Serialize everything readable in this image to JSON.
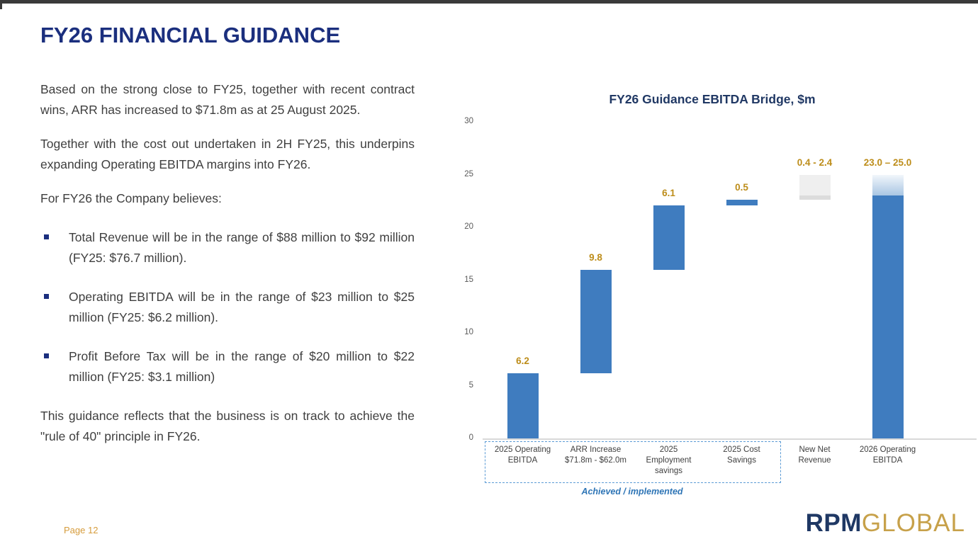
{
  "slide": {
    "title": "FY26 FINANCIAL GUIDANCE",
    "page_label": "Page 12",
    "logo": {
      "part1": "RPM",
      "part2": "GLOBAL"
    }
  },
  "body": {
    "paragraph_1": "Based on the strong close to FY25, together with recent contract wins, ARR has increased to $71.8m as at 25 August 2025.",
    "paragraph_2": "Together with the cost out undertaken in 2H FY25, this underpins expanding Operating EBITDA margins into FY26.",
    "paragraph_3": "For FY26 the Company believes:",
    "bullets": [
      "Total Revenue will be in the range of $88 million to $92 million (FY25: $76.7 million).",
      "Operating EBITDA will be in the range of $23 million to $25 million (FY25: $6.2 million).",
      "Profit Before Tax will be in the range of $20 million to $22 million (FY25: $3.1 million)"
    ],
    "closing": "This guidance reflects that the business is on track to achieve the \"rule of 40\" principle in FY26."
  },
  "chart_data": {
    "type": "bar",
    "subtype": "waterfall",
    "title": "FY26 Guidance EBITDA Bridge, $m",
    "ylabel": "",
    "xlabel": "",
    "ylim": [
      0,
      30
    ],
    "yticks": [
      0,
      5,
      10,
      15,
      20,
      25,
      30
    ],
    "grid": false,
    "legend": "none",
    "categories": [
      "2025 Operating\nEBITDA",
      "ARR Increase\n$71.8m - $62.0m",
      "2025\nEmployment\nsavings",
      "2025 Cost\nSavings",
      "New Net\nRevenue",
      "2026 Operating\nEBITDA"
    ],
    "bars": [
      {
        "start": 0,
        "end": 6.2,
        "value_label": "6.2",
        "kind": "actual"
      },
      {
        "start": 6.2,
        "end": 16.0,
        "value_label": "9.8",
        "kind": "actual"
      },
      {
        "start": 16.0,
        "end": 22.1,
        "value_label": "6.1",
        "kind": "actual"
      },
      {
        "start": 22.1,
        "end": 22.6,
        "value_label": "0.5",
        "kind": "actual"
      },
      {
        "start": 22.6,
        "end": 25.0,
        "value_label": "0.4 - 2.4",
        "kind": "estimate_range",
        "solid_to": 23.0
      },
      {
        "start": 0,
        "end": 25.0,
        "value_label": "23.0 – 25.0",
        "kind": "total_range",
        "solid_to": 23.0
      }
    ],
    "bracket": {
      "label": "Achieved / implemented",
      "covers_categories_from": 0,
      "covers_categories_to": 3
    },
    "colors": {
      "actual_bar": "#3f7cbf",
      "estimate_bar": "#efefef",
      "estimate_bar_base": "#dcdcdc",
      "range_gradient_top": "#f1f6fb",
      "range_gradient_bottom": "#a9c6e3",
      "value_label": "#bd8d1a",
      "title_navy": "#203864",
      "bracket_blue": "#2e75b6",
      "dashed_border_blue": "#5b9bd5"
    }
  }
}
